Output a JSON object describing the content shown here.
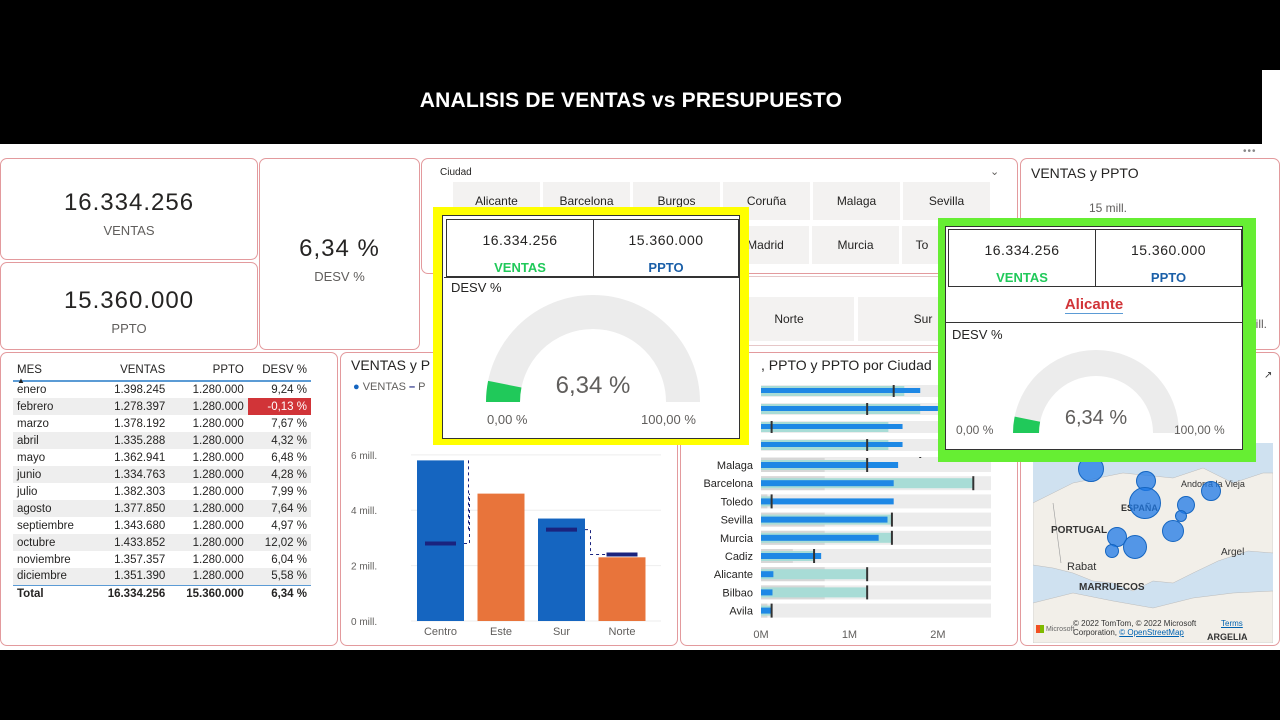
{
  "title": "ANALISIS DE VENTAS vs PRESUPUESTO",
  "colors": {
    "accent_blue": "#1565c0",
    "accent_orange": "#e8743b",
    "green": "#20c95a",
    "teal": "#a8dcd6",
    "red": "#d13438",
    "yellow": "#ffff00",
    "lime": "#66ee33",
    "card_border": "#e39a9d"
  },
  "kpis": {
    "ventas": {
      "value": "16.334.256",
      "label": "VENTAS"
    },
    "ppto": {
      "value": "15.360.000",
      "label": "PPTO"
    },
    "desv": {
      "value": "6,34 %",
      "label": "DESV %"
    }
  },
  "monthly_table": {
    "headers": [
      "MES",
      "VENTAS",
      "PPTO",
      "DESV %"
    ],
    "rows": [
      [
        "enero",
        "1.398.245",
        "1.280.000",
        "9,24 %"
      ],
      [
        "febrero",
        "1.278.397",
        "1.280.000",
        "-0,13 %"
      ],
      [
        "marzo",
        "1.378.192",
        "1.280.000",
        "7,67 %"
      ],
      [
        "abril",
        "1.335.288",
        "1.280.000",
        "4,32 %"
      ],
      [
        "mayo",
        "1.362.941",
        "1.280.000",
        "6,48 %"
      ],
      [
        "junio",
        "1.334.763",
        "1.280.000",
        "4,28 %"
      ],
      [
        "julio",
        "1.382.303",
        "1.280.000",
        "7,99 %"
      ],
      [
        "agosto",
        "1.377.850",
        "1.280.000",
        "7,64 %"
      ],
      [
        "septiembre",
        "1.343.680",
        "1.280.000",
        "4,97 %"
      ],
      [
        "octubre",
        "1.433.852",
        "1.280.000",
        "12,02 %"
      ],
      [
        "noviembre",
        "1.357.357",
        "1.280.000",
        "6,04 %"
      ],
      [
        "diciembre",
        "1.351.390",
        "1.280.000",
        "5,58 %"
      ]
    ],
    "total": [
      "Total",
      "16.334.256",
      "15.360.000",
      "6,34 %"
    ]
  },
  "city_slicer": {
    "label": "Ciudad",
    "row1": [
      "Alicante",
      "Barcelona",
      "Burgos",
      "Coruña",
      "Malaga",
      "Sevilla"
    ],
    "row2": [
      "Madrid",
      "Murcia",
      "To"
    ]
  },
  "zone_slicer": {
    "items": [
      "Norte",
      "Sur"
    ]
  },
  "zone_chart": {
    "title": "VENTAS y P",
    "legend_ventas": "VENTAS"
  },
  "city_chart": {
    "title": ", PPTO y PPTO por Ciudad"
  },
  "right_chart": {
    "title": "VENTAS y PPTO",
    "top_value": "15 mill."
  },
  "map": {
    "labels": {
      "portugal": "PORTUGAL",
      "espana": "ESPAÑA",
      "rabat": "Rabat",
      "marruecos": "MARRUECOS",
      "argel": "Argel",
      "argelia": "ARGELIA",
      "andorra": "Andorra la Vieja"
    },
    "copyright": "© 2022 TomTom, © 2022 Microsoft Corporation,",
    "osm": "© OpenStreetMap",
    "terms": "Terms",
    "brand": "Microsoft"
  },
  "tooltip_yellow": {
    "ventas": "16.334.256",
    "ventas_label": "VENTAS",
    "ppto": "15.360.000",
    "ppto_label": "PPTO",
    "desv_label": "DESV %",
    "gauge_value": "6,34 %",
    "gauge_min": "0,00 %",
    "gauge_max": "100,00 %",
    "gauge_fraction": 0.0634
  },
  "tooltip_green": {
    "ventas": "16.334.256",
    "ventas_label": "VENTAS",
    "ppto": "15.360.000",
    "ppto_label": "PPTO",
    "city": "Alicante",
    "desv_label": "DESV %",
    "gauge_value": "6,34 %",
    "gauge_min": "0,00 %",
    "gauge_max": "100,00 %",
    "gauge_fraction": 0.0634
  },
  "chart_data": [
    {
      "type": "bar",
      "title": "",
      "categories": [
        "Centro",
        "Este",
        "Sur",
        "Norte"
      ],
      "series": [
        {
          "name": "VENTAS",
          "values": [
            5.8,
            4.6,
            3.7,
            2.3
          ]
        },
        {
          "name": "",
          "values": [
            2.8,
            null,
            3.3,
            2.4
          ]
        }
      ],
      "ylabel": "",
      "ylim": [
        0,
        6.5
      ],
      "y_ticks": [
        "0 mill.",
        "2 mill.",
        "4 mill.",
        "6 mill."
      ],
      "bar_colors": [
        "#1565c0",
        "#e8743b",
        "#1565c0",
        "#e8743b"
      ]
    },
    {
      "type": "bar",
      "orientation": "horizontal",
      "title": ", PPTO y PPTO por Ciudad",
      "categories": [
        "Malaga",
        "Barcelona",
        "Toledo",
        "Sevilla",
        "Murcia",
        "Cadiz",
        "Alicante",
        "Bilbao",
        "Avila"
      ],
      "series": [
        {
          "name": "VENTAS",
          "values": [
            1.55,
            1.5,
            1.5,
            1.43,
            1.33,
            0.68,
            0.14,
            0.13,
            0.13
          ]
        },
        {
          "name": "PPTO",
          "values": [
            1.2,
            2.4,
            0.12,
            1.48,
            1.48,
            0.6,
            1.2,
            1.2,
            0.12
          ]
        }
      ],
      "x_ticks": [
        "0M",
        "1M",
        "2M"
      ],
      "xlim": [
        0,
        2.6
      ]
    }
  ]
}
